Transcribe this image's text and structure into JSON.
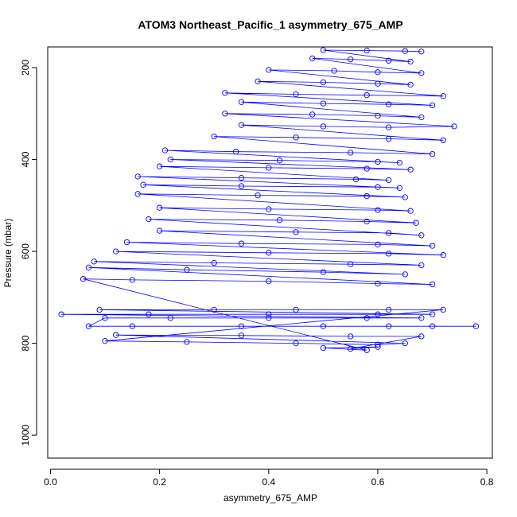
{
  "chart_data": {
    "type": "scatter",
    "title": "ATOM3 Northeast_Pacific_1 asymmetry_675_AMP",
    "xlabel": "asymmetry_675_AMP",
    "ylabel": "Pressure (mbar)",
    "xlim": [
      -0.005,
      0.81
    ],
    "ylim": [
      1050,
      155
    ],
    "y_axis_inverted": true,
    "x_ticks": [
      0.0,
      0.2,
      0.4,
      0.6,
      0.8
    ],
    "x_tick_labels": [
      "0.0",
      "0.2",
      "0.4",
      "0.6",
      "0.8"
    ],
    "y_ticks": [
      200,
      400,
      600,
      800,
      1000
    ],
    "y_tick_labels": [
      "200",
      "400",
      "600",
      "800",
      "1000"
    ],
    "marker": "open-circle",
    "connected_by_lines": true,
    "grid": false,
    "legend": "none",
    "series_color": "#0000ff",
    "series": [
      {
        "points": [
          [
            0.78,
            763
          ],
          [
            0.7,
            763
          ],
          [
            0.62,
            763
          ],
          [
            0.5,
            763
          ],
          [
            0.35,
            763
          ],
          [
            0.15,
            763
          ],
          [
            0.07,
            763
          ],
          [
            0.1,
            745
          ],
          [
            0.22,
            745
          ],
          [
            0.4,
            745
          ],
          [
            0.58,
            745
          ],
          [
            0.68,
            745
          ],
          [
            0.02,
            737
          ],
          [
            0.18,
            737
          ],
          [
            0.4,
            737
          ],
          [
            0.6,
            737
          ],
          [
            0.7,
            737
          ],
          [
            0.09,
            727
          ],
          [
            0.3,
            727
          ],
          [
            0.45,
            727
          ],
          [
            0.62,
            727
          ],
          [
            0.72,
            727
          ],
          [
            0.1,
            795
          ],
          [
            0.25,
            797
          ],
          [
            0.45,
            800
          ],
          [
            0.6,
            803
          ],
          [
            0.65,
            800
          ],
          [
            0.12,
            782
          ],
          [
            0.35,
            783
          ],
          [
            0.55,
            785
          ],
          [
            0.68,
            785
          ],
          [
            0.55,
            812
          ],
          [
            0.6,
            808
          ],
          [
            0.5,
            810
          ],
          [
            0.58,
            815
          ],
          [
            0.06,
            660
          ],
          [
            0.15,
            662
          ],
          [
            0.4,
            665
          ],
          [
            0.6,
            670
          ],
          [
            0.7,
            672
          ],
          [
            0.07,
            635
          ],
          [
            0.25,
            640
          ],
          [
            0.5,
            645
          ],
          [
            0.65,
            650
          ],
          [
            0.08,
            622
          ],
          [
            0.3,
            625
          ],
          [
            0.55,
            628
          ],
          [
            0.68,
            630
          ],
          [
            0.12,
            600
          ],
          [
            0.4,
            603
          ],
          [
            0.62,
            605
          ],
          [
            0.72,
            608
          ],
          [
            0.14,
            580
          ],
          [
            0.35,
            583
          ],
          [
            0.6,
            585
          ],
          [
            0.7,
            588
          ],
          [
            0.2,
            555
          ],
          [
            0.45,
            558
          ],
          [
            0.62,
            560
          ],
          [
            0.68,
            565
          ],
          [
            0.18,
            530
          ],
          [
            0.42,
            532
          ],
          [
            0.58,
            535
          ],
          [
            0.67,
            538
          ],
          [
            0.2,
            505
          ],
          [
            0.4,
            508
          ],
          [
            0.6,
            510
          ],
          [
            0.66,
            512
          ],
          [
            0.16,
            475
          ],
          [
            0.38,
            478
          ],
          [
            0.58,
            480
          ],
          [
            0.65,
            482
          ],
          [
            0.17,
            455
          ],
          [
            0.35,
            458
          ],
          [
            0.6,
            460
          ],
          [
            0.64,
            462
          ],
          [
            0.16,
            437
          ],
          [
            0.35,
            440
          ],
          [
            0.56,
            443
          ],
          [
            0.62,
            445
          ],
          [
            0.2,
            415
          ],
          [
            0.4,
            418
          ],
          [
            0.58,
            420
          ],
          [
            0.66,
            422
          ],
          [
            0.22,
            400
          ],
          [
            0.42,
            402
          ],
          [
            0.6,
            405
          ],
          [
            0.64,
            407
          ],
          [
            0.21,
            380
          ],
          [
            0.34,
            383
          ],
          [
            0.55,
            385
          ],
          [
            0.7,
            388
          ],
          [
            0.3,
            350
          ],
          [
            0.45,
            352
          ],
          [
            0.62,
            355
          ],
          [
            0.72,
            358
          ],
          [
            0.35,
            325
          ],
          [
            0.5,
            328
          ],
          [
            0.62,
            330
          ],
          [
            0.74,
            328
          ],
          [
            0.32,
            300
          ],
          [
            0.48,
            302
          ],
          [
            0.6,
            305
          ],
          [
            0.68,
            308
          ],
          [
            0.35,
            275
          ],
          [
            0.5,
            278
          ],
          [
            0.62,
            280
          ],
          [
            0.7,
            282
          ],
          [
            0.32,
            255
          ],
          [
            0.45,
            258
          ],
          [
            0.58,
            260
          ],
          [
            0.72,
            262
          ],
          [
            0.38,
            230
          ],
          [
            0.5,
            232
          ],
          [
            0.6,
            235
          ],
          [
            0.66,
            237
          ],
          [
            0.4,
            205
          ],
          [
            0.52,
            207
          ],
          [
            0.6,
            210
          ],
          [
            0.68,
            212
          ],
          [
            0.48,
            180
          ],
          [
            0.55,
            182
          ],
          [
            0.62,
            185
          ],
          [
            0.66,
            187
          ],
          [
            0.5,
            162
          ],
          [
            0.58,
            163
          ],
          [
            0.65,
            164
          ],
          [
            0.68,
            165
          ]
        ]
      }
    ]
  }
}
